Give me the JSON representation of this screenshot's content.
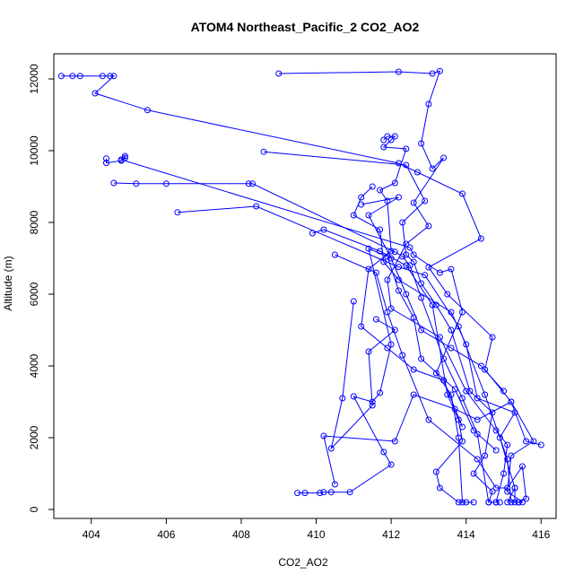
{
  "chart_data": {
    "type": "line",
    "title": "ATOM4 Northeast_Pacific_2 CO2_AO2",
    "xlabel": "CO2_AO2",
    "ylabel": "Altitude (m)",
    "xlim": [
      403,
      416.4
    ],
    "ylim": [
      -250,
      12700
    ],
    "x_ticks": [
      404,
      406,
      408,
      410,
      412,
      414,
      416
    ],
    "y_ticks": [
      0,
      2000,
      4000,
      6000,
      8000,
      10000,
      12000
    ],
    "color": "#0000ff",
    "grid": false,
    "series": [
      {
        "points": [
          [
            403.2,
            12080
          ],
          [
            403.5,
            12080
          ],
          [
            403.7,
            12080
          ],
          [
            404.3,
            12080
          ],
          [
            404.5,
            12080
          ],
          [
            404.6,
            12080
          ],
          [
            404.1,
            11600
          ],
          [
            405.5,
            11130
          ],
          [
            412.2,
            9650
          ],
          [
            412.7,
            9400
          ],
          [
            413.9,
            8800
          ],
          [
            414.4,
            7550
          ],
          [
            413.0,
            6750
          ],
          [
            413.5,
            6000
          ],
          [
            414.7,
            4800
          ],
          [
            414.5,
            3900
          ],
          [
            415.2,
            3000
          ],
          [
            415.8,
            1900
          ],
          [
            415.2,
            1500
          ],
          [
            415.1,
            500
          ],
          [
            415.5,
            200
          ],
          [
            415.3,
            200
          ],
          [
            415.3,
            600
          ]
        ]
      },
      {
        "points": [
          [
            409.0,
            12150
          ],
          [
            412.2,
            12200
          ],
          [
            413.1,
            12150
          ],
          [
            413.3,
            12220
          ],
          [
            413.0,
            11300
          ],
          [
            412.8,
            10200
          ],
          [
            413.1,
            9500
          ],
          [
            413.4,
            9800
          ],
          [
            412.6,
            8550
          ],
          [
            413.0,
            7900
          ],
          [
            412.4,
            7400
          ],
          [
            411.9,
            6400
          ],
          [
            412.0,
            5600
          ],
          [
            413.3,
            4800
          ],
          [
            414.0,
            3300
          ],
          [
            414.8,
            2200
          ],
          [
            415.1,
            1800
          ],
          [
            415.0,
            1000
          ],
          [
            414.8,
            200
          ],
          [
            414.9,
            200
          ]
        ]
      },
      {
        "points": [
          [
            408.6,
            9970
          ],
          [
            412.4,
            9600
          ],
          [
            412.9,
            8600
          ],
          [
            412.3,
            8000
          ],
          [
            412.4,
            7100
          ],
          [
            412.6,
            6900
          ],
          [
            412.8,
            6300
          ],
          [
            413.2,
            5700
          ],
          [
            413.6,
            5000
          ],
          [
            414.1,
            3300
          ],
          [
            414.7,
            2700
          ],
          [
            414.5,
            1500
          ],
          [
            414.2,
            1000
          ],
          [
            414.7,
            500
          ],
          [
            414.6,
            200
          ]
        ]
      },
      {
        "points": [
          [
            404.4,
            9780
          ],
          [
            404.4,
            9660
          ],
          [
            404.8,
            9720
          ],
          [
            404.9,
            9800
          ],
          [
            404.9,
            9850
          ],
          [
            404.8,
            9750
          ],
          [
            412.5,
            7300
          ],
          [
            412.6,
            7100
          ],
          [
            413.3,
            6600
          ],
          [
            413.6,
            6700
          ],
          [
            413.9,
            5500
          ],
          [
            413.2,
            3800
          ],
          [
            413.6,
            3200
          ],
          [
            413.8,
            2000
          ],
          [
            413.9,
            200
          ],
          [
            414.0,
            200
          ]
        ]
      },
      {
        "points": [
          [
            404.6,
            9100
          ],
          [
            405.2,
            9080
          ],
          [
            406.0,
            9080
          ],
          [
            408.2,
            9080
          ],
          [
            408.3,
            9080
          ],
          [
            412.1,
            7180
          ],
          [
            412.3,
            7050
          ],
          [
            412.5,
            6800
          ],
          [
            412.8,
            5900
          ],
          [
            413.4,
            4200
          ],
          [
            413.9,
            3100
          ],
          [
            414.3,
            2100
          ],
          [
            414.6,
            200
          ],
          [
            414.8,
            200
          ]
        ]
      },
      {
        "points": [
          [
            406.3,
            8280
          ],
          [
            408.4,
            8450
          ],
          [
            412.2,
            6760
          ],
          [
            412.9,
            6530
          ],
          [
            413.8,
            5100
          ],
          [
            414.5,
            3200
          ],
          [
            415.1,
            1400
          ],
          [
            415.2,
            200
          ],
          [
            415.4,
            200
          ]
        ]
      },
      {
        "points": [
          [
            409.9,
            7700
          ],
          [
            410.2,
            7800
          ],
          [
            411.7,
            7200
          ],
          [
            412.4,
            6800
          ],
          [
            413.1,
            5700
          ],
          [
            413.5,
            3200
          ],
          [
            413.8,
            2500
          ],
          [
            413.9,
            1900
          ],
          [
            413.2,
            1050
          ],
          [
            413.3,
            600
          ],
          [
            413.8,
            200
          ],
          [
            414.2,
            200
          ]
        ]
      },
      {
        "points": [
          [
            410.5,
            7100
          ],
          [
            411.6,
            6600
          ],
          [
            411.9,
            5500
          ],
          [
            412.3,
            4300
          ],
          [
            413.0,
            2500
          ],
          [
            414.3,
            1400
          ],
          [
            414.8,
            600
          ],
          [
            415.1,
            600
          ],
          [
            415.5,
            1200
          ],
          [
            415.6,
            300
          ],
          [
            415.4,
            200
          ]
        ]
      },
      {
        "points": [
          [
            409.5,
            460
          ],
          [
            409.7,
            460
          ],
          [
            410.1,
            460
          ],
          [
            410.2,
            480
          ],
          [
            410.4,
            480
          ],
          [
            410.9,
            480
          ],
          [
            412.0,
            1250
          ],
          [
            411.8,
            1600
          ],
          [
            411.0,
            3150
          ],
          [
            411.5,
            3000
          ],
          [
            411.7,
            3250
          ],
          [
            412.0,
            4600
          ],
          [
            411.4,
            7270
          ],
          [
            411.9,
            7050
          ],
          [
            412.2,
            6100
          ],
          [
            412.6,
            5350
          ],
          [
            412.8,
            4200
          ],
          [
            413.7,
            3350
          ],
          [
            414.2,
            2200
          ],
          [
            414.8,
            1650
          ]
        ]
      },
      {
        "points": [
          [
            410.5,
            700
          ],
          [
            410.2,
            2050
          ],
          [
            412.1,
            1900
          ],
          [
            412.6,
            3200
          ],
          [
            413.7,
            2800
          ],
          [
            414.3,
            2500
          ],
          [
            415.2,
            3000
          ],
          [
            415.6,
            1900
          ],
          [
            416.0,
            1800
          ]
        ]
      },
      {
        "points": [
          [
            411.0,
            5800
          ],
          [
            410.7,
            3100
          ],
          [
            410.4,
            1700
          ],
          [
            411.5,
            2900
          ],
          [
            411.4,
            4400
          ],
          [
            412.1,
            5000
          ],
          [
            411.6,
            5300
          ]
        ]
      },
      {
        "points": [
          [
            411.2,
            8500
          ],
          [
            412.2,
            8700
          ],
          [
            411.4,
            8200
          ],
          [
            412.0,
            7000
          ],
          [
            412.4,
            6000
          ],
          [
            412.8,
            5000
          ],
          [
            413.6,
            4500
          ],
          [
            414.4,
            4000
          ],
          [
            415.0,
            3300
          ]
        ]
      },
      {
        "points": [
          [
            411.8,
            10300
          ],
          [
            411.9,
            10400
          ],
          [
            412.1,
            10400
          ],
          [
            412.0,
            10300
          ],
          [
            411.8,
            10100
          ],
          [
            412.4,
            10050
          ],
          [
            412.1,
            9100
          ],
          [
            411.7,
            8900
          ],
          [
            411.9,
            8600
          ],
          [
            412.0,
            7200
          ],
          [
            411.4,
            6700
          ],
          [
            411.2,
            5100
          ],
          [
            411.9,
            4500
          ],
          [
            412.6,
            3900
          ],
          [
            413.4,
            3600
          ],
          [
            413.9,
            2300
          ]
        ]
      },
      {
        "points": [
          [
            411.5,
            9000
          ],
          [
            411.2,
            8700
          ],
          [
            411.0,
            8200
          ],
          [
            411.7,
            7800
          ],
          [
            411.8,
            6900
          ],
          [
            412.2,
            6400
          ],
          [
            413.6,
            5500
          ],
          [
            414.0,
            4600
          ],
          [
            414.3,
            3100
          ],
          [
            415.3,
            2700
          ],
          [
            414.9,
            2000
          ],
          [
            415.3,
            600
          ],
          [
            415.1,
            200
          ]
        ]
      }
    ]
  }
}
